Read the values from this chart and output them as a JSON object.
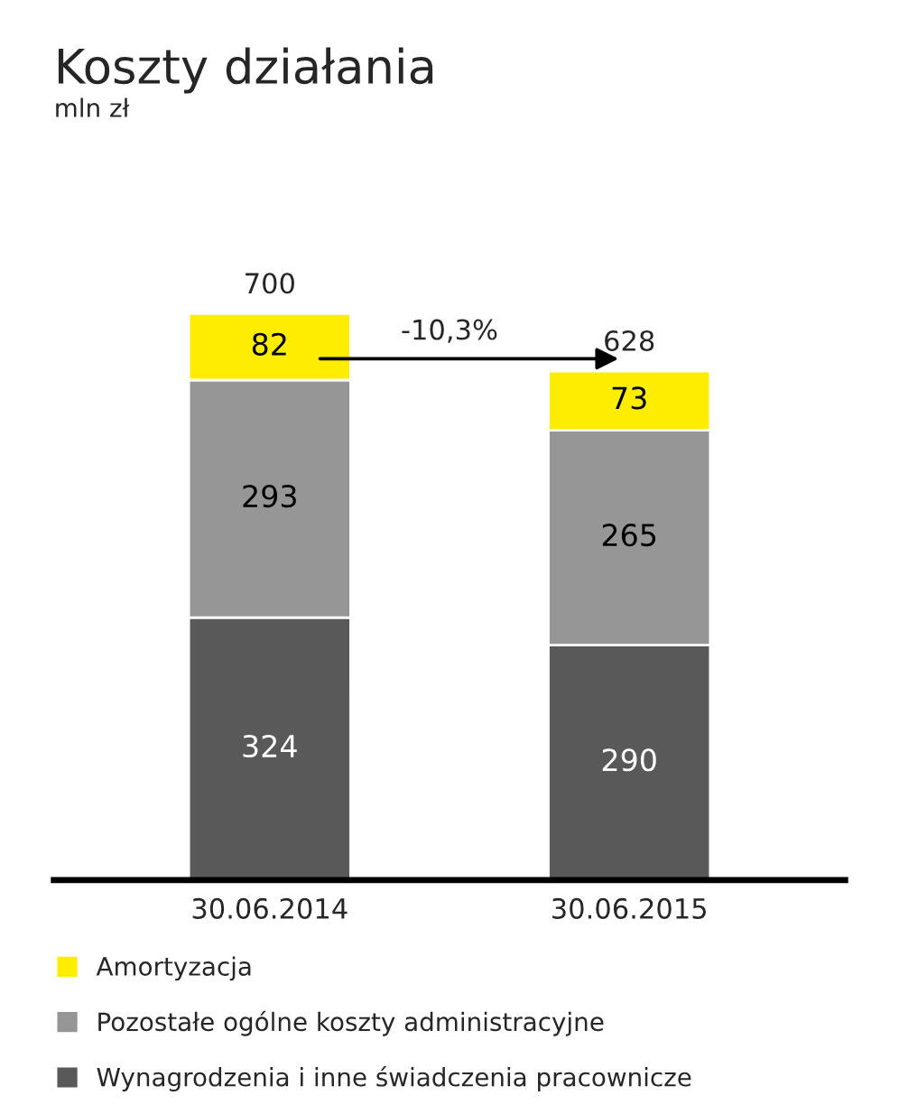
{
  "chart_data": {
    "type": "bar",
    "title": "Koszty działania",
    "subtitle": "mln zł",
    "categories": [
      "30.06.2014",
      "30.06.2015"
    ],
    "stacked": true,
    "data_labels": true,
    "totals": [
      "700",
      "628"
    ],
    "series": [
      {
        "name": "Wynagrodzenia i inne świadczenia pracownicze",
        "color": "#595959",
        "values": [
          324,
          290
        ]
      },
      {
        "name": "Pozostałe ogólne koszty administracyjne",
        "color": "#969696",
        "values": [
          293,
          265
        ]
      },
      {
        "name": "Amortyzacja",
        "color": "#ffed00",
        "values": [
          82,
          73
        ]
      }
    ],
    "annotations": [
      "-10,3%"
    ],
    "legend": "bottom",
    "grid": false
  }
}
